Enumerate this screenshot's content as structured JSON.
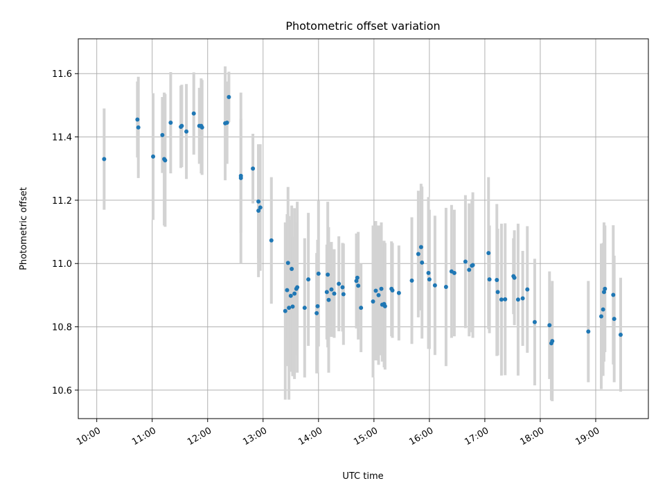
{
  "chart_data": {
    "type": "scatter",
    "title": "Photometric offset variation",
    "xlabel": "UTC time",
    "ylabel": "Photometric offset",
    "xlim": [
      "09:40",
      "19:57"
    ],
    "ylim": [
      10.51,
      11.71
    ],
    "grid": true,
    "x_ticks": [
      "10:00",
      "11:00",
      "12:00",
      "13:00",
      "14:00",
      "15:00",
      "16:00",
      "17:00",
      "18:00",
      "19:00"
    ],
    "y_ticks": [
      10.6,
      10.8,
      11.0,
      11.2,
      11.4,
      11.6
    ],
    "y_tick_labels": [
      "10.6",
      "10.8",
      "11.0",
      "11.2",
      "11.4",
      "11.6"
    ],
    "colors": {
      "points": "#1f77b4",
      "error_bars": "#d3d3d3",
      "grid": "#b0b0b0"
    },
    "series": [
      {
        "x": [
          "10:08",
          "10:44",
          "10:45",
          "11:01",
          "11:11",
          "11:13",
          "11:14",
          "11:20",
          "11:31",
          "11:32",
          "11:37",
          "11:45",
          "11:51",
          "11:53",
          "11:54",
          "12:19",
          "12:21",
          "12:23",
          "12:36",
          "12:36",
          "12:49",
          "12:55",
          "12:55",
          "12:57",
          "13:09",
          "13:24",
          "13:26",
          "13:27",
          "13:28",
          "13:30",
          "13:31",
          "13:32",
          "13:34",
          "13:36",
          "13:37",
          "13:45",
          "13:49",
          "13:58",
          "13:59",
          "14:00",
          "14:09",
          "14:10",
          "14:11",
          "14:14",
          "14:17",
          "14:22",
          "14:26",
          "14:27",
          "14:41",
          "14:42",
          "14:43",
          "14:46",
          "14:59",
          "15:02",
          "15:05",
          "15:08",
          "15:09",
          "15:11",
          "15:12",
          "15:19",
          "15:20",
          "15:27",
          "15:41",
          "15:48",
          "15:51",
          "15:52",
          "15:59",
          "16:00",
          "16:06",
          "16:18",
          "16:24",
          "16:27",
          "16:39",
          "16:43",
          "16:46",
          "16:47",
          "17:04",
          "17:05",
          "17:13",
          "17:14",
          "17:18",
          "17:22",
          "17:31",
          "17:32",
          "17:36",
          "17:41",
          "17:46",
          "17:54",
          "18:10",
          "18:12",
          "18:13",
          "18:52",
          "19:06",
          "19:08",
          "19:09",
          "19:10",
          "19:19",
          "19:20",
          "19:27"
        ],
        "y": [
          11.33,
          11.455,
          11.43,
          11.338,
          11.406,
          11.33,
          11.326,
          11.445,
          11.432,
          11.435,
          11.417,
          11.474,
          11.435,
          11.435,
          11.43,
          11.443,
          11.445,
          11.526,
          11.277,
          11.27,
          11.3,
          11.196,
          11.167,
          11.177,
          11.073,
          10.85,
          10.916,
          11.002,
          10.86,
          10.898,
          10.983,
          10.864,
          10.905,
          10.92,
          10.925,
          10.86,
          10.95,
          10.843,
          10.865,
          10.968,
          10.91,
          10.965,
          10.885,
          10.918,
          10.905,
          10.936,
          10.925,
          10.903,
          10.945,
          10.955,
          10.93,
          10.86,
          10.88,
          10.914,
          10.9,
          10.92,
          10.87,
          10.872,
          10.865,
          10.92,
          10.915,
          10.907,
          10.946,
          11.03,
          11.052,
          11.003,
          10.97,
          10.95,
          10.931,
          10.926,
          10.975,
          10.97,
          11.006,
          10.98,
          10.993,
          10.995,
          11.033,
          10.95,
          10.948,
          10.91,
          10.886,
          10.887,
          10.96,
          10.955,
          10.886,
          10.89,
          10.918,
          10.815,
          10.805,
          10.748,
          10.755,
          10.785,
          10.833,
          10.855,
          10.91,
          10.92,
          10.901,
          10.825,
          10.775
        ],
        "err": [
          0.16,
          0.12,
          0.16,
          0.2,
          0.12,
          0.21,
          0.21,
          0.16,
          0.13,
          0.13,
          0.15,
          0.13,
          0.12,
          0.15,
          0.15,
          0.18,
          0.13,
          0.08,
          0.18,
          0.27,
          0.11,
          0.18,
          0.21,
          0.2,
          0.2,
          0.28,
          0.24,
          0.24,
          0.29,
          0.24,
          0.2,
          0.22,
          0.27,
          0.21,
          0.27,
          0.22,
          0.21,
          0.19,
          0.21,
          0.23,
          0.15,
          0.23,
          0.23,
          0.15,
          0.14,
          0.15,
          0.14,
          0.16,
          0.15,
          0.13,
          0.17,
          0.14,
          0.24,
          0.22,
          0.22,
          0.21,
          0.18,
          0.2,
          0.2,
          0.15,
          0.15,
          0.15,
          0.2,
          0.2,
          0.2,
          0.24,
          0.24,
          0.22,
          0.22,
          0.25,
          0.21,
          0.2,
          0.21,
          0.21,
          0.21,
          0.23,
          0.24,
          0.17,
          0.24,
          0.2,
          0.24,
          0.24,
          0.12,
          0.15,
          0.24,
          0.15,
          0.2,
          0.2,
          0.17,
          0.18,
          0.19,
          0.16,
          0.23,
          0.21,
          0.22,
          0.2,
          0.22,
          0.2,
          0.18
        ]
      }
    ]
  }
}
